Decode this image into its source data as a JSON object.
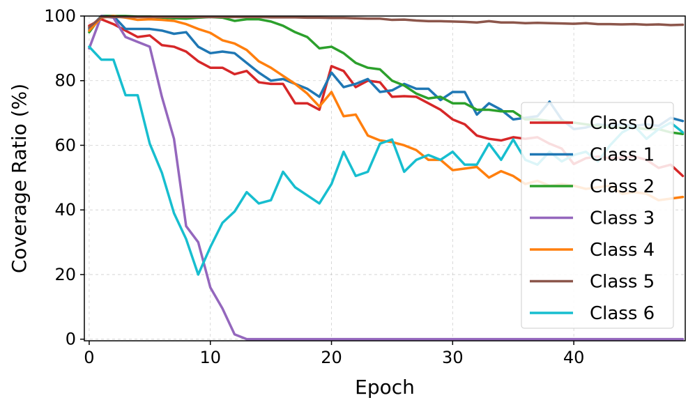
{
  "chart_data": {
    "type": "line",
    "title": "",
    "xlabel": "Epoch",
    "ylabel": "Coverage Ratio (%)",
    "xlim": [
      -0.4,
      49.2
    ],
    "ylim": [
      -0.5,
      100
    ],
    "xticks": [
      0,
      10,
      20,
      30,
      40
    ],
    "yticks": [
      0,
      20,
      40,
      60,
      80,
      100
    ],
    "grid": true,
    "legend_position": "center-right",
    "x": [
      0,
      1,
      2,
      3,
      4,
      5,
      6,
      7,
      8,
      9,
      10,
      11,
      12,
      13,
      14,
      15,
      16,
      17,
      18,
      19,
      20,
      21,
      22,
      23,
      24,
      25,
      26,
      27,
      28,
      29,
      30,
      31,
      32,
      33,
      34,
      35,
      36,
      37,
      38,
      39,
      40,
      41,
      42,
      43,
      44,
      45,
      46,
      47,
      48,
      49
    ],
    "series": [
      {
        "name": "Class 0",
        "color": "#d62728",
        "values": [
          97,
          99,
          97.5,
          95.5,
          93.5,
          94,
          91,
          90.5,
          89,
          86,
          84,
          84,
          82,
          83,
          79.5,
          79,
          79,
          73,
          73,
          71,
          84.5,
          83,
          78,
          80,
          79.5,
          75,
          75.2,
          75,
          73,
          71,
          68,
          66.5,
          63,
          62,
          61.5,
          62.5,
          62,
          62.5,
          60.5,
          59,
          54.2,
          56,
          56.5,
          56,
          56.2,
          56.5,
          55.5,
          53,
          54,
          50.5
        ]
      },
      {
        "name": "Class 1",
        "color": "#1f77b4",
        "values": [
          96,
          100,
          100,
          96,
          96,
          96,
          95.5,
          94.5,
          95,
          90.5,
          88.5,
          89,
          88.5,
          85.5,
          82.5,
          80,
          80.5,
          79,
          77.5,
          75,
          82.5,
          78,
          79,
          80.5,
          76.5,
          77,
          79,
          77.5,
          77.5,
          74,
          76.5,
          76.5,
          69.5,
          73,
          71,
          68,
          68.5,
          69,
          73.5,
          68,
          65,
          65.5,
          66.5,
          66,
          66.5,
          66,
          66.5,
          66,
          68.5,
          67.5
        ]
      },
      {
        "name": "Class 2",
        "color": "#2ca02c",
        "values": [
          95,
          100,
          100,
          100,
          99.8,
          99.8,
          99.5,
          99.3,
          99.2,
          99.5,
          99.7,
          99.5,
          98.5,
          99,
          99,
          98.3,
          97,
          95,
          93.5,
          90,
          90.5,
          88.5,
          85.5,
          84,
          83.5,
          80,
          78.5,
          76,
          74.5,
          75,
          73,
          73,
          71,
          71,
          70.5,
          70.5,
          68,
          68,
          67.5,
          67.5,
          67,
          66.5,
          66,
          65.5,
          65.5,
          65.5,
          65,
          65,
          64,
          63.5
        ]
      },
      {
        "name": "Class 3",
        "color": "#9467bd",
        "values": [
          90,
          100,
          99.5,
          93.5,
          92,
          90.5,
          75,
          62,
          35,
          30,
          16,
          9.5,
          1.5,
          0,
          0,
          0,
          0,
          0,
          0,
          0,
          0,
          0,
          0,
          0,
          0,
          0,
          0,
          0,
          0,
          0,
          0,
          0,
          0,
          0,
          0,
          0,
          0,
          0,
          0,
          0,
          0,
          0,
          0,
          0,
          0,
          0,
          0,
          0,
          0,
          0
        ]
      },
      {
        "name": "Class 4",
        "color": "#ff7f0e",
        "values": [
          95.5,
          99.5,
          100,
          99.5,
          98.8,
          99,
          98.8,
          98.5,
          97.5,
          96,
          94.8,
          92.5,
          91.5,
          89.5,
          86,
          84,
          81.5,
          79,
          76,
          72,
          76.5,
          69,
          69.5,
          63,
          61.5,
          61,
          60,
          58.5,
          55.5,
          55.5,
          52.3,
          52.8,
          53.3,
          50,
          52,
          50.5,
          48,
          49,
          47.5,
          48,
          47.5,
          46.5,
          47,
          47.5,
          45,
          45.5,
          45,
          43,
          43.5,
          44
        ]
      },
      {
        "name": "Class 5",
        "color": "#8c564b",
        "values": [
          96.5,
          99.7,
          99.7,
          99.7,
          99.7,
          99.7,
          99.7,
          99.7,
          99.7,
          99.7,
          99.7,
          99.7,
          99.7,
          99.7,
          99.7,
          99.6,
          99.6,
          99.6,
          99.5,
          99.5,
          99.4,
          99.4,
          99.3,
          99.2,
          99.2,
          98.8,
          98.9,
          98.6,
          98.4,
          98.4,
          98.3,
          98.2,
          98,
          98.4,
          98,
          98,
          97.8,
          97.9,
          97.8,
          97.7,
          97.6,
          97.8,
          97.5,
          97.5,
          97.4,
          97.5,
          97.3,
          97.4,
          97.2,
          97.3
        ]
      },
      {
        "name": "Class 6",
        "color": "#17becf",
        "values": [
          90.5,
          86.5,
          86.5,
          75.5,
          75.5,
          60.5,
          51.5,
          39,
          31,
          20,
          28.5,
          36,
          39.5,
          45.5,
          42,
          43,
          51.8,
          47,
          44.5,
          42,
          48,
          58,
          50.5,
          51.8,
          60.5,
          61.8,
          51.8,
          55.5,
          57,
          55.5,
          58,
          54,
          54,
          60.5,
          55.5,
          61.8,
          55.5,
          54,
          58,
          55,
          57,
          58,
          55,
          60,
          64,
          66,
          62,
          65,
          67,
          64
        ]
      }
    ]
  }
}
